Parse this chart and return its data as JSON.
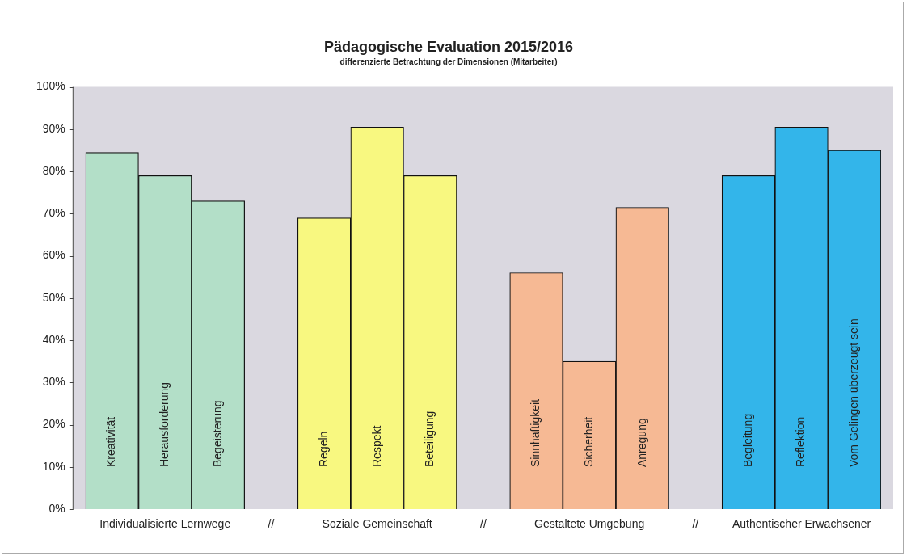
{
  "chart_data": {
    "type": "bar",
    "title": "Pädagogische Evaluation 2015/2016",
    "subtitle": "differenzierte Betrachtung der Dimensionen (Mitarbeiter)",
    "categories": [
      "Kreativität",
      "Herausforderung",
      "Begeisterung",
      null,
      "Regeln",
      "Respekt",
      "Beteiligung",
      null,
      "Sinnhaftigkeit",
      "Sicherheit",
      "Anregung",
      null,
      "Begleitung",
      "Reflektion",
      "Vom Gelingen überzeugt sein"
    ],
    "values": [
      84.5,
      79,
      73,
      null,
      69,
      90.5,
      79,
      null,
      56,
      35,
      71.5,
      null,
      79,
      90.5,
      85
    ],
    "colors": [
      "#b3dfc8",
      "#b3dfc8",
      "#b3dfc8",
      "#ffffff",
      "#f8f880",
      "#f8f880",
      "#f8f880",
      "#ffffff",
      "#f6b994",
      "#f6b994",
      "#f6b994",
      "#ffffff",
      "#33b5ea",
      "#33b5ea",
      "#33b5ea"
    ],
    "ylim": [
      0,
      100
    ],
    "yticks": [
      {
        "value": 0,
        "label": "0%"
      },
      {
        "value": 10,
        "label": "10%"
      },
      {
        "value": 20,
        "label": "20%"
      },
      {
        "value": 30,
        "label": "30%"
      },
      {
        "value": 40,
        "label": "40%"
      },
      {
        "value": 50,
        "label": "50%"
      },
      {
        "value": 60,
        "label": "60%"
      },
      {
        "value": 70,
        "label": "70%"
      },
      {
        "value": 80,
        "label": "80%"
      },
      {
        "value": 90,
        "label": "90%"
      },
      {
        "value": 100,
        "label": "100%"
      }
    ],
    "annotations": [
      "Individualisierte Lernwege",
      "//",
      "Soziale Gemeinschaft",
      "//",
      "Gestaltete Umgebung",
      "//",
      "Authentischer Erwachsener"
    ],
    "grid": false,
    "legend": false
  }
}
